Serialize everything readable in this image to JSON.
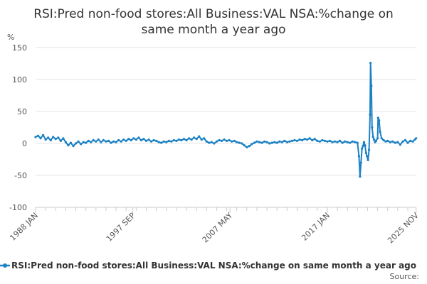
{
  "chart_data": {
    "type": "line",
    "title_lines": [
      "RSI:Pred non-food stores:All Business:VAL NSA:%change on",
      "same month a year ago"
    ],
    "unit_label": "%",
    "ylim": [
      -100,
      150
    ],
    "y_ticks": [
      150,
      100,
      50,
      0,
      -50,
      -100
    ],
    "x_range": [
      1988.0,
      2025.85
    ],
    "x_ticks": [
      {
        "label": "1988 JAN",
        "x": 1988.0
      },
      {
        "label": "1997 SEP",
        "x": 1997.67
      },
      {
        "label": "2007 MAY",
        "x": 2007.33
      },
      {
        "label": "2017 JAN",
        "x": 2017.0
      },
      {
        "label": "2025 NOV",
        "x": 2025.83
      }
    ],
    "grid": "horizontal",
    "legend_position": "bottom",
    "series": [
      {
        "name": "RSI:Pred non-food stores:All Business:VAL NSA:%change on same month a year ago",
        "color": "#1a81c5",
        "points": [
          [
            1988.0,
            10
          ],
          [
            1988.25,
            12
          ],
          [
            1988.5,
            8
          ],
          [
            1988.75,
            13
          ],
          [
            1989.0,
            6
          ],
          [
            1989.25,
            9
          ],
          [
            1989.5,
            5
          ],
          [
            1989.75,
            10
          ],
          [
            1990.0,
            7
          ],
          [
            1990.25,
            9
          ],
          [
            1990.5,
            4
          ],
          [
            1990.75,
            8
          ],
          [
            1991.0,
            2
          ],
          [
            1991.25,
            -3
          ],
          [
            1991.5,
            1
          ],
          [
            1991.75,
            -4
          ],
          [
            1992.0,
            0
          ],
          [
            1992.25,
            3
          ],
          [
            1992.5,
            -1
          ],
          [
            1992.75,
            2
          ],
          [
            1993.0,
            1
          ],
          [
            1993.25,
            4
          ],
          [
            1993.5,
            2
          ],
          [
            1993.75,
            5
          ],
          [
            1994.0,
            3
          ],
          [
            1994.25,
            6
          ],
          [
            1994.5,
            2
          ],
          [
            1994.75,
            5
          ],
          [
            1995.0,
            3
          ],
          [
            1995.25,
            4
          ],
          [
            1995.5,
            1
          ],
          [
            1995.75,
            3
          ],
          [
            1996.0,
            2
          ],
          [
            1996.25,
            5
          ],
          [
            1996.5,
            3
          ],
          [
            1996.75,
            6
          ],
          [
            1997.0,
            4
          ],
          [
            1997.25,
            7
          ],
          [
            1997.5,
            5
          ],
          [
            1997.75,
            8
          ],
          [
            1998.0,
            6
          ],
          [
            1998.25,
            9
          ],
          [
            1998.5,
            5
          ],
          [
            1998.75,
            7
          ],
          [
            1999.0,
            4
          ],
          [
            1999.25,
            6
          ],
          [
            1999.5,
            3
          ],
          [
            1999.75,
            5
          ],
          [
            2000.0,
            4
          ],
          [
            2000.25,
            2
          ],
          [
            2000.5,
            1
          ],
          [
            2000.75,
            3
          ],
          [
            2001.0,
            2
          ],
          [
            2001.25,
            4
          ],
          [
            2001.5,
            3
          ],
          [
            2001.75,
            5
          ],
          [
            2002.0,
            4
          ],
          [
            2002.25,
            6
          ],
          [
            2002.5,
            5
          ],
          [
            2002.75,
            7
          ],
          [
            2003.0,
            5
          ],
          [
            2003.25,
            8
          ],
          [
            2003.5,
            6
          ],
          [
            2003.75,
            9
          ],
          [
            2004.0,
            7
          ],
          [
            2004.25,
            11
          ],
          [
            2004.5,
            6
          ],
          [
            2004.75,
            8
          ],
          [
            2005.0,
            3
          ],
          [
            2005.25,
            1
          ],
          [
            2005.5,
            2
          ],
          [
            2005.75,
            0
          ],
          [
            2006.0,
            3
          ],
          [
            2006.25,
            5
          ],
          [
            2006.5,
            4
          ],
          [
            2006.75,
            6
          ],
          [
            2007.0,
            4
          ],
          [
            2007.25,
            5
          ],
          [
            2007.5,
            3
          ],
          [
            2007.75,
            4
          ],
          [
            2008.0,
            2
          ],
          [
            2008.25,
            1
          ],
          [
            2008.5,
            0
          ],
          [
            2008.75,
            -3
          ],
          [
            2009.0,
            -6
          ],
          [
            2009.25,
            -4
          ],
          [
            2009.5,
            -1
          ],
          [
            2009.75,
            1
          ],
          [
            2010.0,
            3
          ],
          [
            2010.25,
            2
          ],
          [
            2010.5,
            1
          ],
          [
            2010.75,
            3
          ],
          [
            2011.0,
            2
          ],
          [
            2011.25,
            0
          ],
          [
            2011.5,
            1
          ],
          [
            2011.75,
            2
          ],
          [
            2012.0,
            1
          ],
          [
            2012.25,
            3
          ],
          [
            2012.5,
            2
          ],
          [
            2012.75,
            4
          ],
          [
            2013.0,
            2
          ],
          [
            2013.25,
            3
          ],
          [
            2013.5,
            4
          ],
          [
            2013.75,
            5
          ],
          [
            2014.0,
            4
          ],
          [
            2014.25,
            6
          ],
          [
            2014.5,
            5
          ],
          [
            2014.75,
            7
          ],
          [
            2015.0,
            6
          ],
          [
            2015.25,
            8
          ],
          [
            2015.5,
            5
          ],
          [
            2015.75,
            7
          ],
          [
            2016.0,
            4
          ],
          [
            2016.25,
            3
          ],
          [
            2016.5,
            5
          ],
          [
            2016.75,
            4
          ],
          [
            2017.0,
            3
          ],
          [
            2017.25,
            4
          ],
          [
            2017.5,
            2
          ],
          [
            2017.75,
            3
          ],
          [
            2018.0,
            2
          ],
          [
            2018.25,
            4
          ],
          [
            2018.5,
            1
          ],
          [
            2018.75,
            3
          ],
          [
            2019.0,
            2
          ],
          [
            2019.25,
            1
          ],
          [
            2019.5,
            3
          ],
          [
            2019.75,
            2
          ],
          [
            2020.0,
            1
          ],
          [
            2020.15,
            -20
          ],
          [
            2020.25,
            -52
          ],
          [
            2020.35,
            -30
          ],
          [
            2020.45,
            -8
          ],
          [
            2020.55,
            -4
          ],
          [
            2020.65,
            2
          ],
          [
            2020.75,
            -3
          ],
          [
            2020.85,
            -15
          ],
          [
            2020.95,
            -20
          ],
          [
            2021.05,
            -26
          ],
          [
            2021.15,
            -10
          ],
          [
            2021.25,
            45
          ],
          [
            2021.3,
            126
          ],
          [
            2021.38,
            90
          ],
          [
            2021.45,
            25
          ],
          [
            2021.55,
            10
          ],
          [
            2021.65,
            6
          ],
          [
            2021.75,
            2
          ],
          [
            2021.85,
            4
          ],
          [
            2022.0,
            8
          ],
          [
            2022.05,
            40
          ],
          [
            2022.15,
            36
          ],
          [
            2022.25,
            18
          ],
          [
            2022.4,
            8
          ],
          [
            2022.6,
            5
          ],
          [
            2022.8,
            3
          ],
          [
            2023.0,
            4
          ],
          [
            2023.25,
            2
          ],
          [
            2023.5,
            3
          ],
          [
            2023.75,
            1
          ],
          [
            2024.0,
            2
          ],
          [
            2024.25,
            -2
          ],
          [
            2024.5,
            3
          ],
          [
            2024.75,
            5
          ],
          [
            2025.0,
            1
          ],
          [
            2025.25,
            4
          ],
          [
            2025.5,
            3
          ],
          [
            2025.7,
            6
          ],
          [
            2025.83,
            8
          ]
        ]
      }
    ],
    "source_label": "Source:"
  }
}
